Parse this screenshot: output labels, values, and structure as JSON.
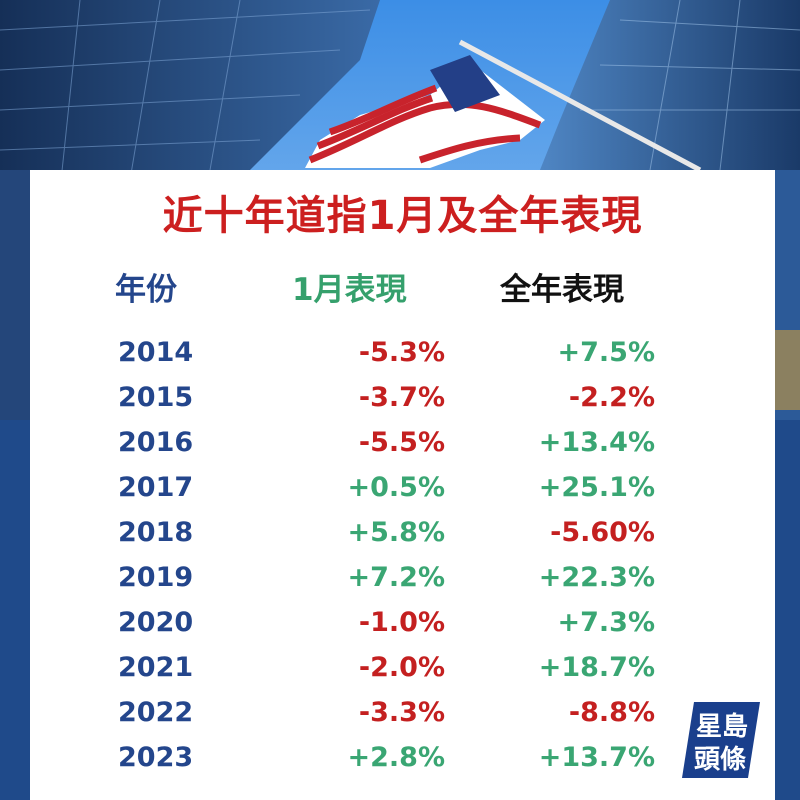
{
  "title": "近十年道指1月及全年表現",
  "headers": {
    "year": "年份",
    "january": "1月表現",
    "full_year": "全年表現"
  },
  "rows": [
    {
      "year": "2014",
      "january": "-5.3%",
      "full_year": "+7.5%"
    },
    {
      "year": "2015",
      "january": "-3.7%",
      "full_year": "-2.2%"
    },
    {
      "year": "2016",
      "january": "-5.5%",
      "full_year": "+13.4%"
    },
    {
      "year": "2017",
      "january": "+0.5%",
      "full_year": "+25.1%"
    },
    {
      "year": "2018",
      "january": "+5.8%",
      "full_year": "-5.60%"
    },
    {
      "year": "2019",
      "january": "+7.2%",
      "full_year": "+22.3%"
    },
    {
      "year": "2020",
      "january": "-1.0%",
      "full_year": "+7.3%"
    },
    {
      "year": "2021",
      "january": "-2.0%",
      "full_year": "+18.7%"
    },
    {
      "year": "2022",
      "january": "-3.3%",
      "full_year": "-8.8%"
    },
    {
      "year": "2023",
      "january": "+2.8%",
      "full_year": "+13.7%"
    }
  ],
  "logo": {
    "line1": "星島",
    "line2": "頭條"
  },
  "colors": {
    "title": "#cc1f1f",
    "year": "#24468c",
    "positive": "#3aa673",
    "negative": "#c42020",
    "background": "#1f4a8a"
  },
  "icons": {
    "background": "us-flag-skyscrapers-photo",
    "logo": "sing-tao-headline-logo"
  }
}
